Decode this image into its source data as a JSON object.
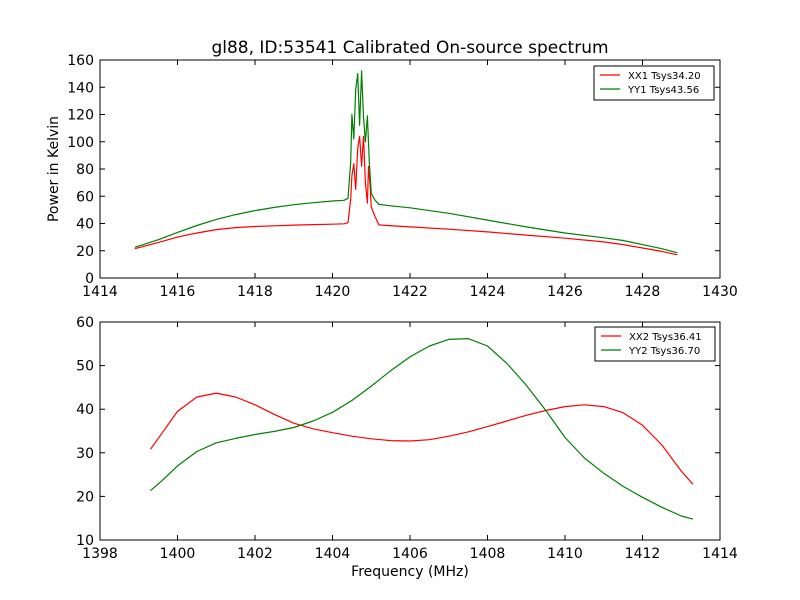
{
  "figure": {
    "title": "gl88, ID:53541 Calibrated On-source spectrum",
    "ylabel": "Power in Kelvin",
    "xlabel": "Frequency (MHz)"
  },
  "chart_data": [
    {
      "type": "line",
      "title": "gl88, ID:53541 Calibrated On-source spectrum",
      "xlabel": "",
      "ylabel": "Power in Kelvin",
      "xlim": [
        1414,
        1430
      ],
      "ylim": [
        0,
        160
      ],
      "xticks": [
        "1414",
        "1416",
        "1418",
        "1420",
        "1422",
        "1424",
        "1426",
        "1428",
        "1430"
      ],
      "yticks": [
        "0",
        "20",
        "40",
        "60",
        "80",
        "100",
        "120",
        "140",
        "160"
      ],
      "grid": false,
      "legend_position": "top-right",
      "series": [
        {
          "name": "XX1 Tsys34.20",
          "color": "#ff0000",
          "points": [
            [
              1414.9,
              21.5
            ],
            [
              1415.5,
              26
            ],
            [
              1416,
              30
            ],
            [
              1416.5,
              33
            ],
            [
              1417,
              35.5
            ],
            [
              1417.5,
              37
            ],
            [
              1418,
              37.8
            ],
            [
              1418.5,
              38.3
            ],
            [
              1419,
              38.8
            ],
            [
              1419.5,
              39.2
            ],
            [
              1420,
              39.5
            ],
            [
              1420.3,
              39.8
            ],
            [
              1420.4,
              40.5
            ],
            [
              1420.47,
              58
            ],
            [
              1420.5,
              75
            ],
            [
              1420.55,
              84
            ],
            [
              1420.6,
              65
            ],
            [
              1420.65,
              95
            ],
            [
              1420.7,
              104
            ],
            [
              1420.75,
              82
            ],
            [
              1420.8,
              104
            ],
            [
              1420.85,
              70
            ],
            [
              1420.9,
              55
            ],
            [
              1420.93,
              82
            ],
            [
              1420.97,
              68
            ],
            [
              1421,
              52
            ],
            [
              1421.1,
              45
            ],
            [
              1421.2,
              39
            ],
            [
              1421.4,
              38.5
            ],
            [
              1422,
              37.5
            ],
            [
              1423,
              35.8
            ],
            [
              1424,
              33.8
            ],
            [
              1425,
              31.5
            ],
            [
              1426,
              29.2
            ],
            [
              1427,
              26.5
            ],
            [
              1427.5,
              24.5
            ],
            [
              1428,
              22
            ],
            [
              1428.5,
              19.5
            ],
            [
              1428.9,
              17
            ]
          ]
        },
        {
          "name": "YY1 Tsys43.56",
          "color": "#008000",
          "points": [
            [
              1414.9,
              22.5
            ],
            [
              1415.5,
              28
            ],
            [
              1416,
              33.5
            ],
            [
              1416.5,
              38.5
            ],
            [
              1417,
              43
            ],
            [
              1417.5,
              46.5
            ],
            [
              1418,
              49.5
            ],
            [
              1418.5,
              51.8
            ],
            [
              1419,
              53.8
            ],
            [
              1419.5,
              55.3
            ],
            [
              1420,
              56.5
            ],
            [
              1420.3,
              57
            ],
            [
              1420.4,
              58.5
            ],
            [
              1420.47,
              85
            ],
            [
              1420.5,
              120
            ],
            [
              1420.55,
              102
            ],
            [
              1420.6,
              138
            ],
            [
              1420.65,
              150
            ],
            [
              1420.7,
              112
            ],
            [
              1420.75,
              152
            ],
            [
              1420.8,
              118
            ],
            [
              1420.85,
              100
            ],
            [
              1420.9,
              119
            ],
            [
              1420.95,
              85
            ],
            [
              1421,
              62
            ],
            [
              1421.1,
              57
            ],
            [
              1421.2,
              54
            ],
            [
              1421.5,
              53
            ],
            [
              1422,
              51.5
            ],
            [
              1423,
              47.5
            ],
            [
              1424,
              42.5
            ],
            [
              1425,
              37.5
            ],
            [
              1426,
              33
            ],
            [
              1427,
              29.5
            ],
            [
              1427.5,
              27.5
            ],
            [
              1428,
              24.5
            ],
            [
              1428.5,
              21.5
            ],
            [
              1428.9,
              18.5
            ]
          ]
        }
      ]
    },
    {
      "type": "line",
      "title": "",
      "xlabel": "Frequency (MHz)",
      "ylabel": "",
      "xlim": [
        1398,
        1414
      ],
      "ylim": [
        10,
        60
      ],
      "xticks": [
        "1398",
        "1400",
        "1402",
        "1404",
        "1406",
        "1408",
        "1410",
        "1412",
        "1414"
      ],
      "yticks": [
        "10",
        "20",
        "30",
        "40",
        "50",
        "60"
      ],
      "grid": false,
      "legend_position": "top-right",
      "series": [
        {
          "name": "XX2 Tsys36.41",
          "color": "#ff0000",
          "points": [
            [
              1399.3,
              30.8
            ],
            [
              1399.6,
              34.5
            ],
            [
              1400,
              39.5
            ],
            [
              1400.5,
              42.8
            ],
            [
              1401,
              43.7
            ],
            [
              1401.5,
              42.8
            ],
            [
              1402,
              41
            ],
            [
              1402.5,
              38.8
            ],
            [
              1403,
              36.8
            ],
            [
              1403.5,
              35.5
            ],
            [
              1404,
              34.6
            ],
            [
              1404.5,
              33.8
            ],
            [
              1405,
              33.2
            ],
            [
              1405.5,
              32.8
            ],
            [
              1406,
              32.7
            ],
            [
              1406.5,
              33
            ],
            [
              1407,
              33.8
            ],
            [
              1407.5,
              34.8
            ],
            [
              1408,
              36
            ],
            [
              1408.5,
              37.3
            ],
            [
              1409,
              38.6
            ],
            [
              1409.5,
              39.7
            ],
            [
              1410,
              40.6
            ],
            [
              1410.5,
              41
            ],
            [
              1411,
              40.6
            ],
            [
              1411.5,
              39.2
            ],
            [
              1412,
              36.3
            ],
            [
              1412.5,
              31.8
            ],
            [
              1413,
              25.8
            ],
            [
              1413.3,
              22.8
            ]
          ]
        },
        {
          "name": "YY2 Tsys36.70",
          "color": "#008000",
          "points": [
            [
              1399.3,
              21.3
            ],
            [
              1399.6,
              23.6
            ],
            [
              1400,
              27
            ],
            [
              1400.5,
              30.3
            ],
            [
              1401,
              32.3
            ],
            [
              1401.5,
              33.3
            ],
            [
              1402,
              34.2
            ],
            [
              1402.5,
              34.9
            ],
            [
              1403,
              35.8
            ],
            [
              1403.5,
              37.3
            ],
            [
              1404,
              39.3
            ],
            [
              1404.5,
              42
            ],
            [
              1405,
              45.3
            ],
            [
              1405.5,
              48.8
            ],
            [
              1406,
              52
            ],
            [
              1406.5,
              54.5
            ],
            [
              1407,
              56
            ],
            [
              1407.5,
              56.2
            ],
            [
              1408,
              54.5
            ],
            [
              1408.5,
              50.5
            ],
            [
              1409,
              45.5
            ],
            [
              1409.5,
              39.8
            ],
            [
              1410,
              33.5
            ],
            [
              1410.5,
              28.8
            ],
            [
              1411,
              25.3
            ],
            [
              1411.5,
              22.3
            ],
            [
              1412,
              19.8
            ],
            [
              1412.5,
              17.5
            ],
            [
              1413,
              15.5
            ],
            [
              1413.3,
              14.8
            ]
          ]
        }
      ]
    }
  ]
}
